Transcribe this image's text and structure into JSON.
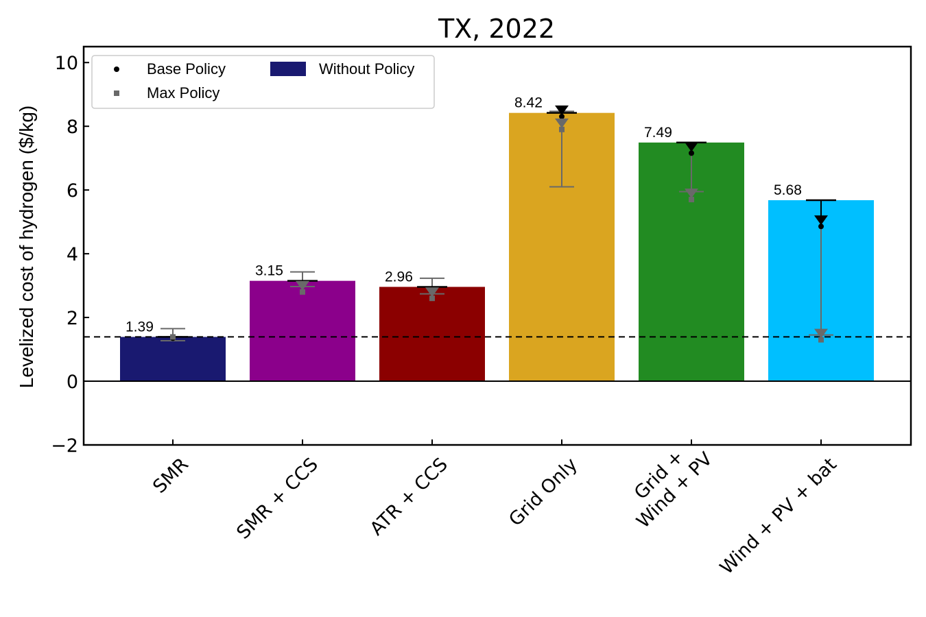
{
  "chart_data": {
    "type": "bar",
    "title": "TX, 2022",
    "ylabel": "Levelized  cost of hydrogen ($/kg)",
    "xlabel": "",
    "ylim": [
      -2,
      10.5
    ],
    "yticks": [
      -2,
      0,
      2,
      4,
      6,
      8,
      10
    ],
    "ytick_labels": [
      "−2",
      "0",
      "2",
      "4",
      "6",
      "8",
      "10"
    ],
    "categories": [
      [
        "SMR"
      ],
      [
        "SMR + CCS"
      ],
      [
        "ATR + CCS"
      ],
      [
        "Grid Only"
      ],
      [
        "Grid +",
        "Wind + PV"
      ],
      [
        "Wind + PV + bat"
      ]
    ],
    "reference_line": 1.39,
    "legend": {
      "placement": "upper-left",
      "entries": [
        {
          "label": "Base Policy",
          "marker": "dot",
          "color": "#000000"
        },
        {
          "label": "Max Policy",
          "marker": "square",
          "color": "#696969"
        },
        {
          "label": "Without Policy",
          "marker": "patch",
          "color": "#191970"
        }
      ]
    },
    "series": [
      {
        "name": "Without Policy",
        "values": [
          1.39,
          3.15,
          2.96,
          8.42,
          7.49,
          5.68
        ],
        "value_labels": [
          "1.39",
          "3.15",
          "2.96",
          "8.42",
          "7.49",
          "5.68"
        ],
        "colors": [
          "#191970",
          "#8B008B",
          "#8B0000",
          "#DAA520",
          "#228B22",
          "#00BFFF"
        ]
      },
      {
        "name": "Base Policy",
        "values": [
          1.39,
          3.15,
          2.96,
          8.42,
          7.49,
          5.68
        ],
        "targets": [
          1.39,
          3.1,
          2.9,
          8.35,
          7.2,
          4.9
        ]
      },
      {
        "name": "Max Policy",
        "values": [
          1.39,
          3.15,
          2.96,
          8.42,
          7.49,
          5.68
        ],
        "targets": [
          1.39,
          2.8,
          2.6,
          7.9,
          5.7,
          1.3
        ],
        "error_low": [
          1.27,
          2.97,
          2.74,
          6.1,
          5.95,
          1.45
        ],
        "error_high": [
          1.65,
          3.43,
          3.23,
          8.47,
          7.49,
          5.68
        ]
      }
    ],
    "grid": false
  }
}
